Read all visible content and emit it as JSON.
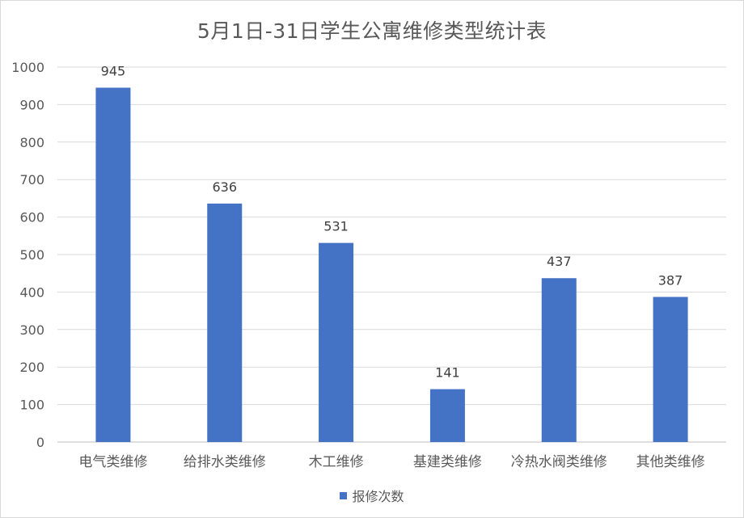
{
  "chart_data": {
    "type": "bar",
    "title": "5月1日-31日学生公寓维修类型统计表",
    "categories": [
      "电气类维修",
      "给排水类维修",
      "木工维修",
      "基建类维修",
      "冷热水阀类维修",
      "其他类维修"
    ],
    "series": [
      {
        "name": "报修次数",
        "values": [
          945,
          636,
          531,
          141,
          437,
          387
        ],
        "color": "#4472c4"
      }
    ],
    "ylim": [
      0,
      1000
    ],
    "yticks": [
      0,
      100,
      200,
      300,
      400,
      500,
      600,
      700,
      800,
      900,
      1000
    ],
    "grid": true,
    "data_labels": true,
    "legend_position": "bottom"
  }
}
